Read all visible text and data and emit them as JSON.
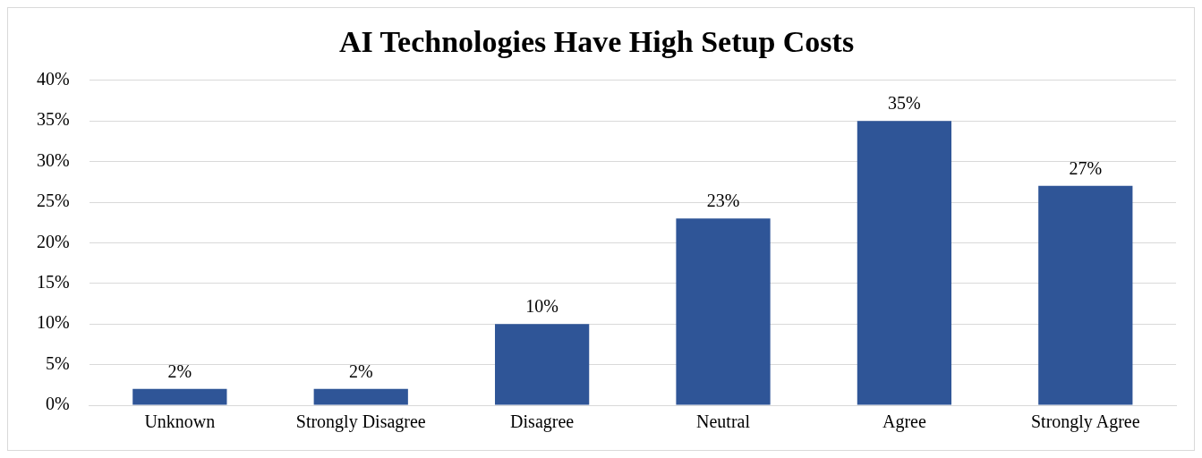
{
  "chart_data": {
    "type": "bar",
    "title": "AI Technologies Have High Setup Costs",
    "categories": [
      "Unknown",
      "Strongly Disagree",
      "Disagree",
      "Neutral",
      "Agree",
      "Strongly Agree"
    ],
    "values": [
      2,
      2,
      10,
      23,
      35,
      27
    ],
    "color": "#2f5597",
    "ylim": [
      0,
      40
    ],
    "yticks": [
      {
        "value": 0,
        "label": "0%"
      },
      {
        "value": 5,
        "label": "5%"
      },
      {
        "value": 10,
        "label": "10%"
      },
      {
        "value": 15,
        "label": "15%"
      },
      {
        "value": 20,
        "label": "20%"
      },
      {
        "value": 25,
        "label": "25%"
      },
      {
        "value": 30,
        "label": "30%"
      },
      {
        "value": 35,
        "label": "35%"
      },
      {
        "value": 40,
        "label": "40%"
      }
    ],
    "value_labels": [
      "2%",
      "2%",
      "10%",
      "23%",
      "35%",
      "27%"
    ],
    "grid": "y",
    "legend": false
  }
}
